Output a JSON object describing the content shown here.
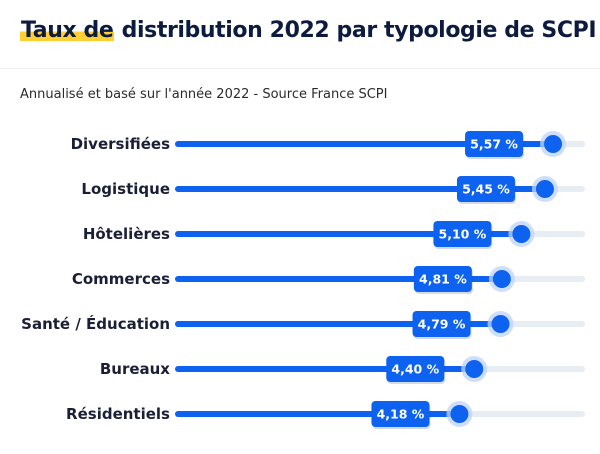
{
  "header": {
    "title_highlight": "Taux de",
    "title_rest": " distribution 2022 par typologie de SCPI",
    "subtitle": "Annualisé et basé sur l'année 2022 - Source France SCPI"
  },
  "colors": {
    "bar": "#0d63f0",
    "track": "#e8ecf3",
    "knob_halo": "#bdd3fb",
    "label_box": "#0d63f0",
    "highlight": "#ffcf33"
  },
  "chart_data": {
    "type": "bar",
    "orientation": "horizontal",
    "title": "Taux de distribution 2022 par typologie de SCPI",
    "subtitle": "Annualisé et basé sur l'année 2022 - Source France SCPI",
    "categories": [
      "Diversifiées",
      "Logistique",
      "Hôtelières",
      "Commerces",
      "Santé / Éducation",
      "Bureaux",
      "Résidentiels"
    ],
    "values": [
      5.57,
      5.45,
      5.1,
      4.81,
      4.79,
      4.4,
      4.18
    ],
    "value_labels": [
      "5,57 %",
      "5,45 %",
      "5,10 %",
      "4,81 %",
      "4,79 %",
      "4,40 %",
      "4,18 %"
    ],
    "unit": "%",
    "xlim": [
      0,
      6.0
    ],
    "grid": false,
    "legend": "none"
  }
}
